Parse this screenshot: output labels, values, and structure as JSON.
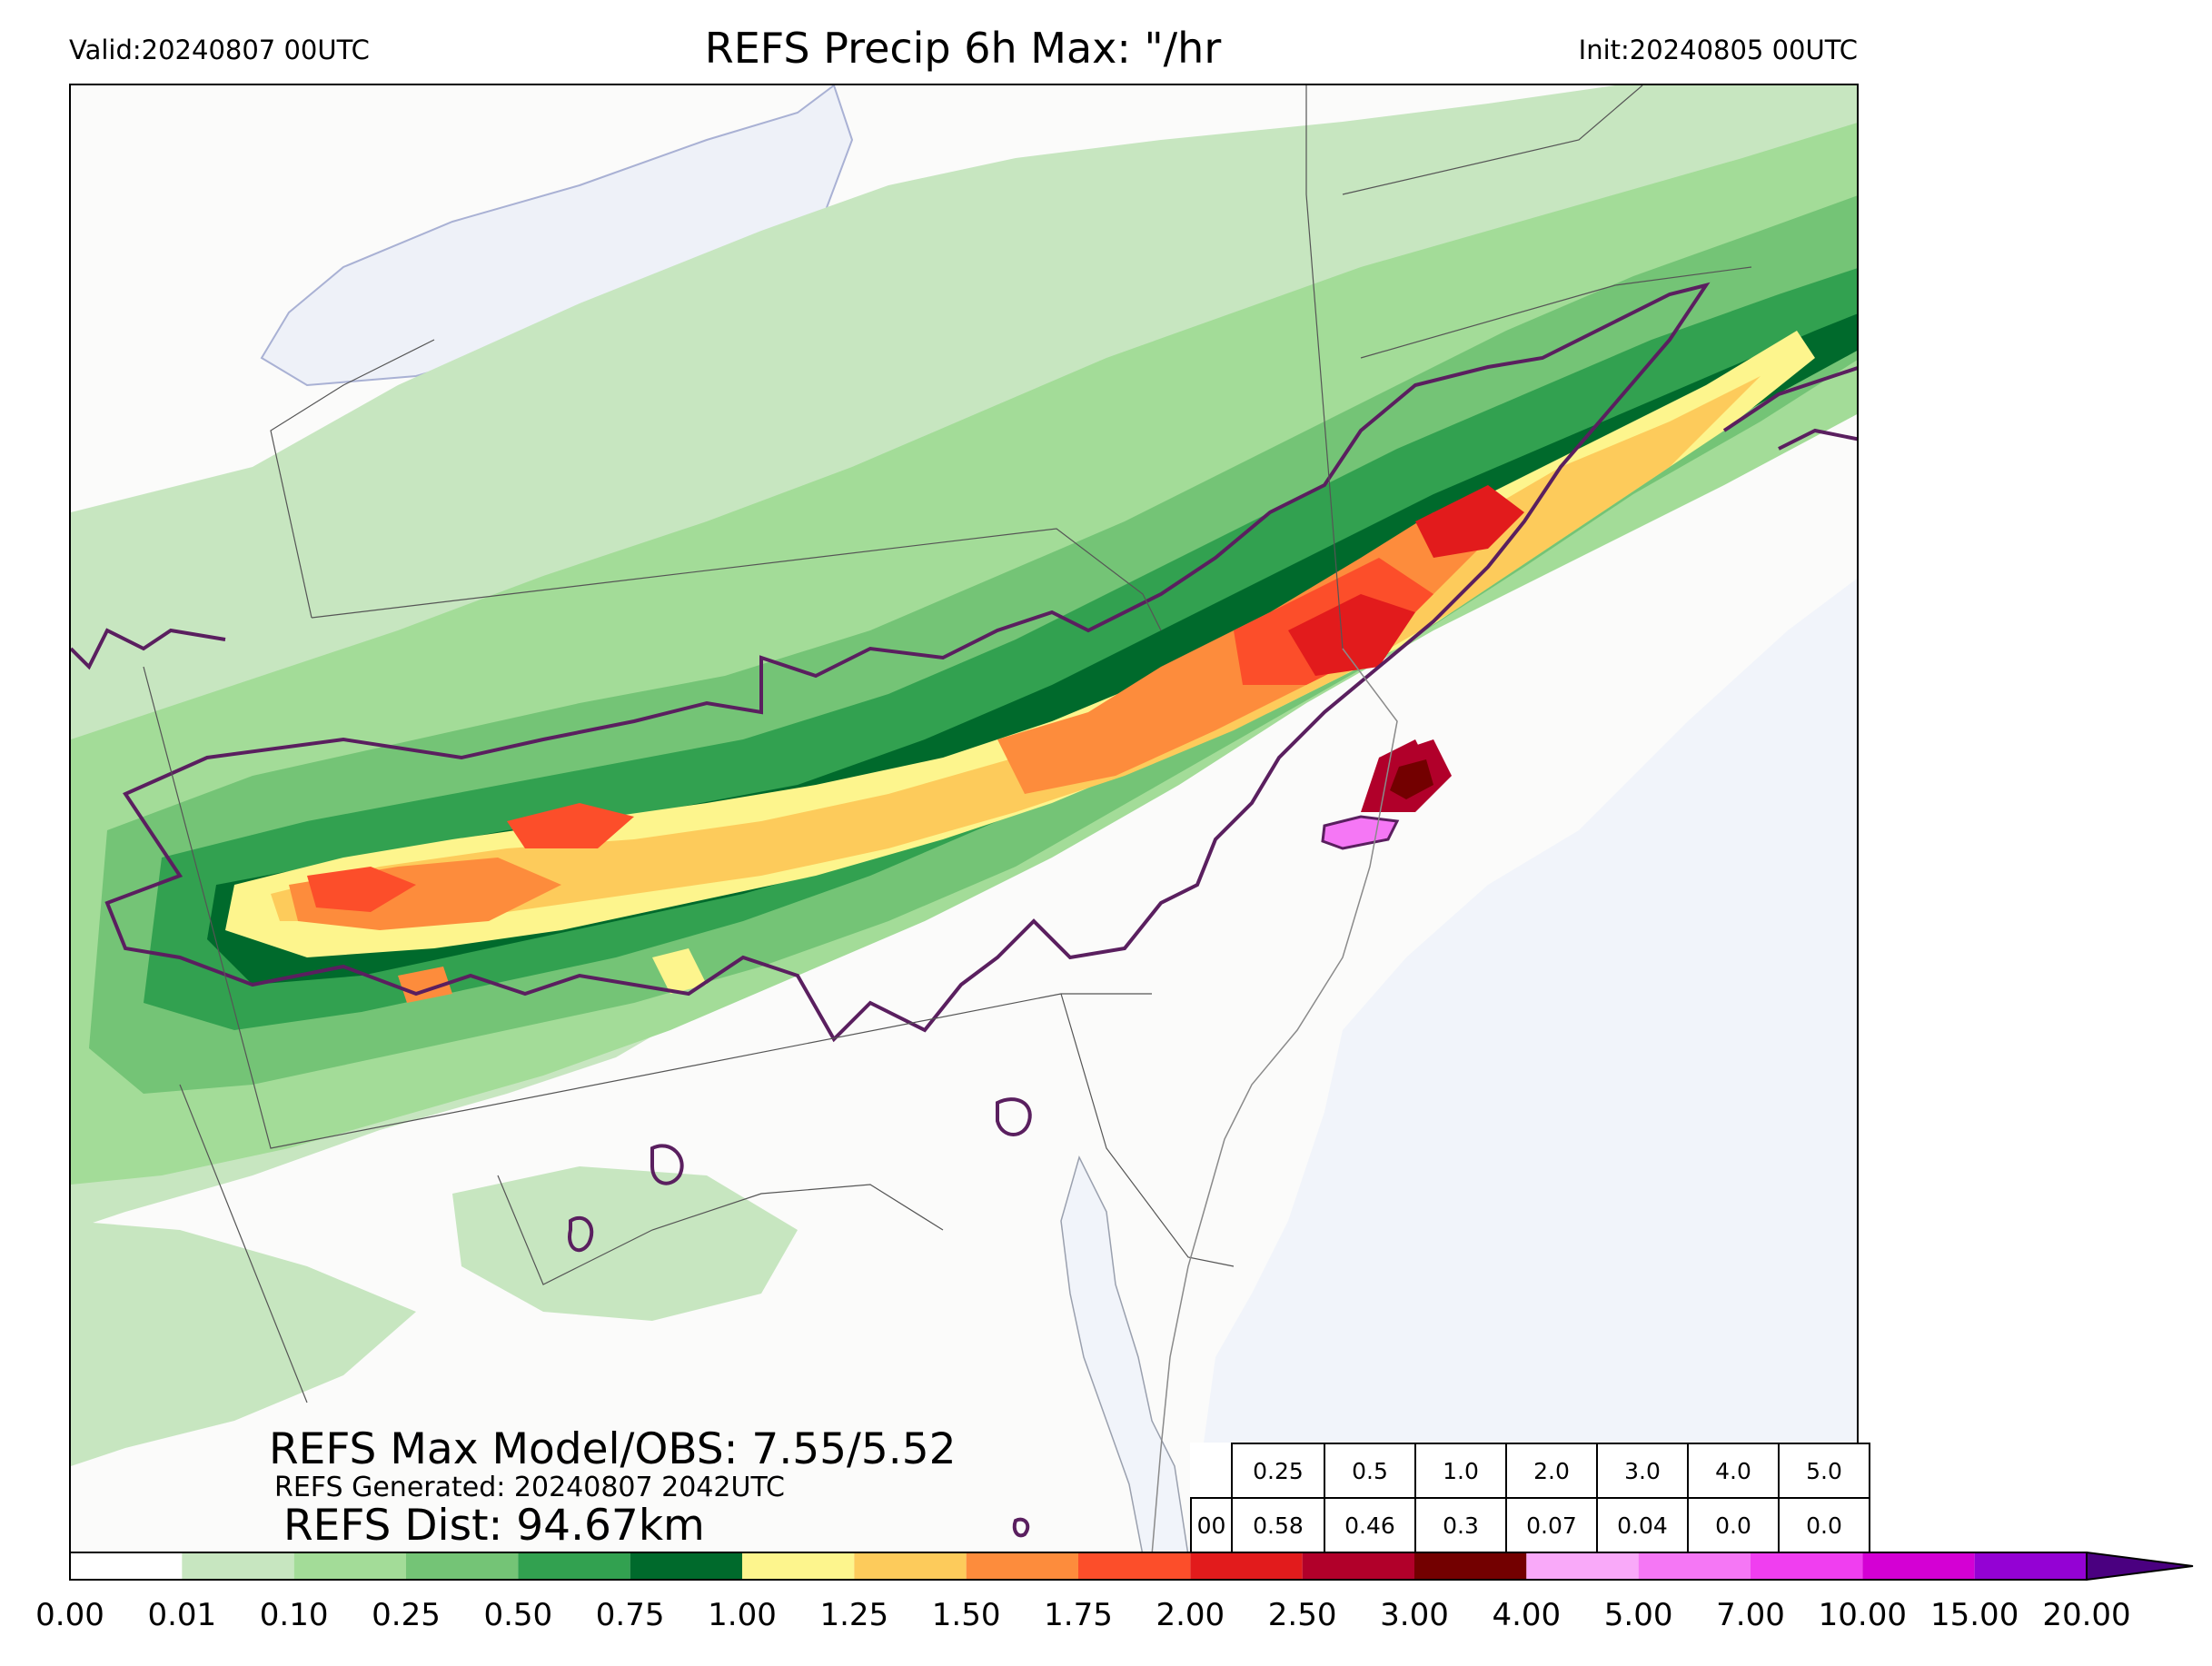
{
  "header": {
    "valid": "Valid:20240807 00UTC",
    "title": "REFS Precip 6h Max: \"/hr",
    "init": "Init:20240805 00UTC"
  },
  "stats": {
    "max_line": "REFS Max Model/OBS: 7.55/5.52",
    "generated_line": "REFS Generated: 20240807 2042UTC",
    "dist_line": "REFS Dist: 94.67km"
  },
  "prob_table": {
    "thresholds": [
      "0.25",
      "0.5",
      "1.0",
      "2.0",
      "3.0",
      "4.0",
      "5.0"
    ],
    "row_label": "00",
    "values": [
      "0.58",
      "0.46",
      "0.3",
      "0.07",
      "0.04",
      "0.0",
      "0.0"
    ]
  },
  "colorbar": {
    "ticks": [
      "0.00",
      "0.01",
      "0.10",
      "0.25",
      "0.50",
      "0.75",
      "1.00",
      "1.25",
      "1.50",
      "1.75",
      "2.00",
      "2.50",
      "3.00",
      "4.00",
      "5.00",
      "7.00",
      "10.00",
      "15.00",
      "20.00"
    ],
    "colors": [
      "#ffffff",
      "#c7e6c0",
      "#a3dc98",
      "#74c476",
      "#32a150",
      "#006a2c",
      "#fdf58d",
      "#fdcb5b",
      "#fd8c3c",
      "#fc4e2a",
      "#e21b1c",
      "#b1002a",
      "#730000",
      "#f9a9f9",
      "#f577f5",
      "#f03ef0",
      "#d400d4",
      "#9402d4"
    ],
    "extend_color": "#4a0080"
  },
  "map_colors": {
    "ocean": "#f1f4fa",
    "lake": "#eef1f8",
    "outline": "#5a1f5f",
    "border": "#555555"
  }
}
